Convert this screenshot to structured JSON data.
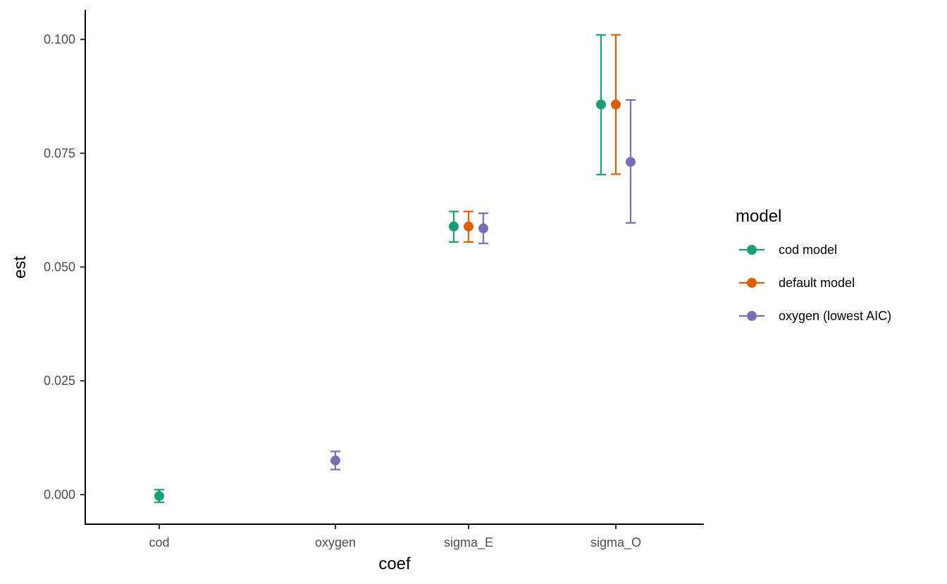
{
  "chart_data": {
    "type": "scatter",
    "subtype": "pointrange",
    "title": "",
    "xlabel": "coef",
    "ylabel": "est",
    "categories": [
      "cod",
      "oxygen",
      "sigma_E",
      "sigma_O"
    ],
    "ylim": [
      -0.0065,
      0.1065
    ],
    "yticks": [
      0.0,
      0.025,
      0.05,
      0.075,
      0.1
    ],
    "ytick_labels": [
      "0.000",
      "0.025",
      "0.050",
      "0.075",
      "0.100"
    ],
    "grid": false,
    "legend": {
      "title": "model",
      "position": "right"
    },
    "series": [
      {
        "name": "cod model",
        "color": "#1b9e77",
        "points": [
          {
            "x": "cod",
            "y": -0.0003,
            "ymin": -0.0017,
            "ymax": 0.0011
          },
          {
            "x": "sigma_E",
            "y": 0.0589,
            "ymin": 0.0555,
            "ymax": 0.0622
          },
          {
            "x": "sigma_O",
            "y": 0.0857,
            "ymin": 0.0703,
            "ymax": 0.101
          }
        ]
      },
      {
        "name": "default model",
        "color": "#d95f02",
        "points": [
          {
            "x": "sigma_E",
            "y": 0.0589,
            "ymin": 0.0555,
            "ymax": 0.0622
          },
          {
            "x": "sigma_O",
            "y": 0.0857,
            "ymin": 0.0704,
            "ymax": 0.101
          }
        ]
      },
      {
        "name": "oxygen (lowest AIC)",
        "color": "#7570b3",
        "points": [
          {
            "x": "oxygen",
            "y": 0.0075,
            "ymin": 0.0055,
            "ymax": 0.0095
          },
          {
            "x": "sigma_E",
            "y": 0.0585,
            "ymin": 0.0552,
            "ymax": 0.0618
          },
          {
            "x": "sigma_O",
            "y": 0.0731,
            "ymin": 0.0597,
            "ymax": 0.0867
          }
        ]
      }
    ]
  }
}
